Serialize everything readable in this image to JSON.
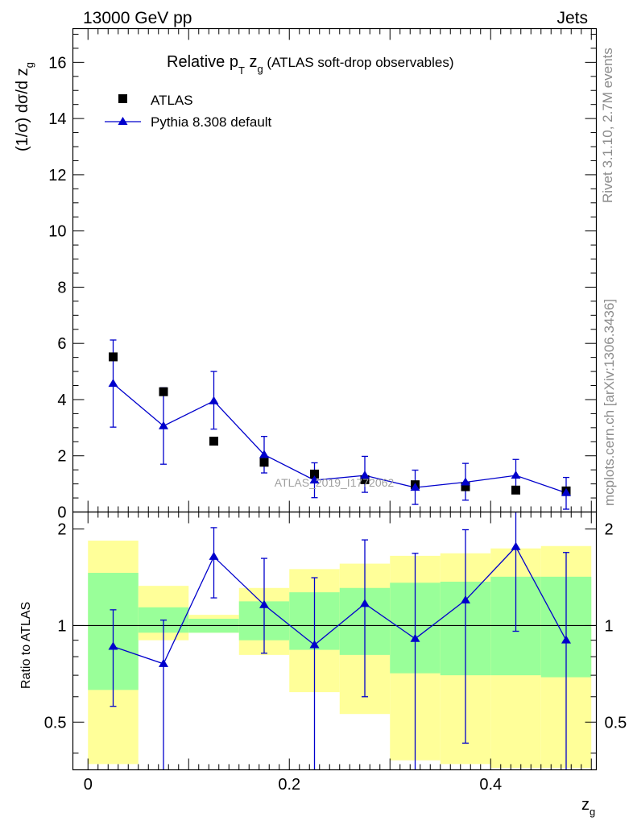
{
  "header": {
    "left": "13000 GeV pp",
    "right": "Jets"
  },
  "side_labels": {
    "rivet": "Rivet 3.1.10,  2.7M events",
    "mcplots": "mcplots.cern.ch [arXiv:1306.3436]"
  },
  "chart_data": [
    {
      "type": "scatter",
      "panel": "main",
      "title_parts": [
        "Relative p",
        "T",
        " z",
        "g",
        " (ATLAS soft-drop observables)"
      ],
      "ylabel_parts": [
        "(1/σ) dσ/d z",
        "g"
      ],
      "watermark": "ATLAS_2019_I1772062",
      "xlim": [
        -0.015,
        0.505
      ],
      "ylim": [
        0,
        17.2
      ],
      "y_ticks": [
        0,
        2,
        4,
        6,
        8,
        10,
        12,
        14,
        16
      ],
      "legend_position": "top-left",
      "x_bins": [
        [
          0.0,
          0.05
        ],
        [
          0.05,
          0.1
        ],
        [
          0.1,
          0.15
        ],
        [
          0.15,
          0.2
        ],
        [
          0.2,
          0.25
        ],
        [
          0.25,
          0.3
        ],
        [
          0.3,
          0.35
        ],
        [
          0.35,
          0.4
        ],
        [
          0.4,
          0.45
        ],
        [
          0.45,
          0.5
        ]
      ],
      "series": [
        {
          "name": "ATLAS",
          "marker": "square",
          "color": "#000000",
          "x": [
            0.025,
            0.075,
            0.125,
            0.175,
            0.225,
            0.275,
            0.325,
            0.375,
            0.425,
            0.475
          ],
          "y": [
            5.52,
            4.28,
            2.52,
            1.77,
            1.35,
            1.15,
            0.97,
            0.9,
            0.78,
            0.75
          ]
        },
        {
          "name": "Pythia 8.308 default",
          "marker": "triangle",
          "color": "#0000cc",
          "x": [
            0.025,
            0.075,
            0.125,
            0.175,
            0.225,
            0.275,
            0.325,
            0.375,
            0.425,
            0.475
          ],
          "y": [
            4.57,
            3.06,
            3.95,
            2.04,
            1.13,
            1.3,
            0.87,
            1.06,
            1.3,
            0.68
          ],
          "err_low": [
            1.55,
            1.36,
            1.0,
            0.65,
            0.62,
            0.6,
            0.6,
            0.64,
            0.5,
            0.58
          ],
          "err_high": [
            1.55,
            1.36,
            1.05,
            0.65,
            0.62,
            0.68,
            0.62,
            0.67,
            0.57,
            0.55
          ]
        }
      ]
    },
    {
      "type": "line",
      "panel": "ratio",
      "ylabel": "Ratio to ATLAS",
      "xlabel_parts": [
        "z",
        "g"
      ],
      "xlim": [
        -0.015,
        0.505
      ],
      "ylim": [
        0.355,
        2.26
      ],
      "y_ticks": [
        0.5,
        1,
        2
      ],
      "x_ticks": [
        0,
        0.2,
        0.4
      ],
      "x_tick_labels": [
        "0",
        "0.2",
        "0.4"
      ],
      "bands": {
        "edges": [
          0.0,
          0.05,
          0.1,
          0.15,
          0.2,
          0.25,
          0.3,
          0.35,
          0.4,
          0.45,
          0.5
        ],
        "yellow_low": [
          0.37,
          0.9,
          0.95,
          0.81,
          0.62,
          0.53,
          0.38,
          0.37,
          0.36,
          0.36
        ],
        "yellow_high": [
          1.84,
          1.33,
          1.08,
          1.31,
          1.5,
          1.56,
          1.65,
          1.68,
          1.74,
          1.77
        ],
        "green_low": [
          0.63,
          0.95,
          0.95,
          0.9,
          0.84,
          0.81,
          0.71,
          0.7,
          0.7,
          0.69
        ],
        "green_high": [
          1.46,
          1.14,
          1.05,
          1.19,
          1.27,
          1.31,
          1.36,
          1.37,
          1.42,
          1.42
        ],
        "yellow_color": "#ffff99",
        "green_color": "#99ff99"
      },
      "series": [
        {
          "name": "Pythia 8.308 default",
          "color": "#0000cc",
          "x": [
            0.025,
            0.075,
            0.125,
            0.175,
            0.225,
            0.275,
            0.325,
            0.375,
            0.425,
            0.475
          ],
          "y": [
            0.86,
            0.76,
            1.64,
            1.16,
            0.87,
            1.17,
            0.91,
            1.2,
            1.76,
            0.9
          ],
          "err_low": [
            0.3,
            0.42,
            0.42,
            0.34,
            0.55,
            0.57,
            0.6,
            0.77,
            0.8,
            0.6
          ],
          "err_high": [
            0.26,
            0.28,
            0.38,
            0.46,
            0.54,
            0.68,
            0.77,
            0.79,
            0.64,
            0.79
          ]
        }
      ]
    }
  ]
}
